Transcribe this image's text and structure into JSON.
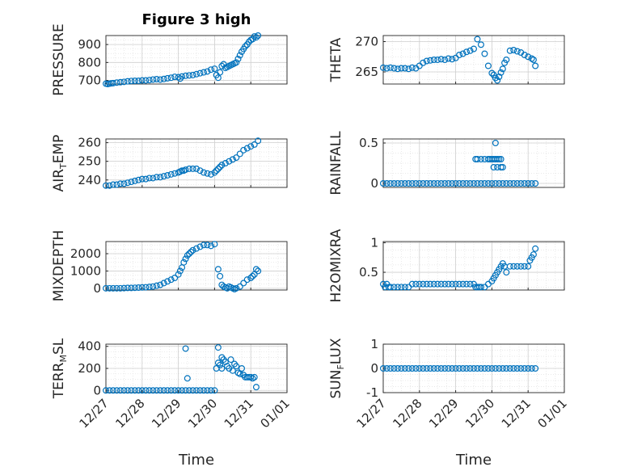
{
  "figure": {
    "title": "Figure 3 high",
    "x_categories": [
      "12/27",
      "12/28",
      "12/29",
      "12/30",
      "12/31",
      "01/01"
    ],
    "xlabel": "Time"
  },
  "colors": {
    "marker": "#0072BD",
    "axes": "#262626",
    "grid": "#cfcfcf"
  },
  "chart_data": [
    {
      "type": "scatter",
      "ylabel": "PRESSURE",
      "ylabel_sub": "",
      "ylim": [
        680,
        950
      ],
      "yticks": [
        700,
        800,
        900
      ],
      "xlim": [
        0,
        5
      ],
      "series": [
        {
          "name": "PRESSURE",
          "x": [
            0.0,
            0.05,
            0.1,
            0.15,
            0.2,
            0.3,
            0.4,
            0.5,
            0.6,
            0.7,
            0.8,
            0.9,
            1.0,
            1.1,
            1.2,
            1.3,
            1.4,
            1.5,
            1.6,
            1.7,
            1.8,
            1.9,
            2.0,
            2.05,
            2.1,
            2.2,
            2.3,
            2.4,
            2.5,
            2.6,
            2.7,
            2.8,
            2.9,
            3.0,
            3.05,
            3.1,
            3.15,
            3.2,
            3.25,
            3.3,
            3.35,
            3.4,
            3.45,
            3.5,
            3.55,
            3.6,
            3.65,
            3.7,
            3.75,
            3.8,
            3.85,
            3.9,
            3.95,
            4.0,
            4.05,
            4.1,
            4.15,
            4.2
          ],
          "y": [
            682,
            680,
            682,
            684,
            685,
            688,
            690,
            692,
            695,
            697,
            698,
            698,
            700,
            700,
            702,
            705,
            707,
            705,
            708,
            712,
            715,
            720,
            718,
            710,
            722,
            726,
            728,
            730,
            735,
            740,
            745,
            750,
            760,
            765,
            730,
            715,
            745,
            780,
            790,
            770,
            775,
            780,
            785,
            790,
            795,
            800,
            820,
            840,
            860,
            875,
            890,
            900,
            915,
            925,
            930,
            945,
            940,
            950
          ]
        }
      ]
    },
    {
      "type": "scatter",
      "ylabel": "THETA",
      "ylabel_sub": "",
      "ylim": [
        263,
        271
      ],
      "yticks": [
        265,
        270
      ],
      "xlim": [
        0,
        5
      ],
      "series": [
        {
          "name": "THETA",
          "x": [
            0.0,
            0.1,
            0.2,
            0.3,
            0.4,
            0.5,
            0.6,
            0.7,
            0.8,
            0.9,
            1.0,
            1.1,
            1.2,
            1.3,
            1.4,
            1.5,
            1.6,
            1.7,
            1.8,
            1.9,
            2.0,
            2.1,
            2.2,
            2.3,
            2.4,
            2.5,
            2.6,
            2.7,
            2.8,
            2.9,
            3.0,
            3.05,
            3.1,
            3.15,
            3.2,
            3.25,
            3.3,
            3.35,
            3.4,
            3.5,
            3.6,
            3.7,
            3.8,
            3.9,
            4.0,
            4.1,
            4.15,
            4.2
          ],
          "y": [
            265.7,
            265.6,
            265.7,
            265.6,
            265.5,
            265.6,
            265.6,
            265.5,
            265.7,
            265.6,
            266,
            266.5,
            266.8,
            266.9,
            267.0,
            267.0,
            267.1,
            267.0,
            267.2,
            267.1,
            267.3,
            267.8,
            268.0,
            268.3,
            268.5,
            268.8,
            270.4,
            269.5,
            268.0,
            266.0,
            264.8,
            264.5,
            264.0,
            263.6,
            264.2,
            264.9,
            265.5,
            266.5,
            267.0,
            268.5,
            268.6,
            268.4,
            268.2,
            267.8,
            267.5,
            267.2,
            267.0,
            266.0
          ]
        }
      ]
    },
    {
      "type": "scatter",
      "ylabel": "AIR",
      "ylabel_sub": "T",
      "ylabel_suffix": "EMP",
      "ylim": [
        236,
        262
      ],
      "yticks": [
        240,
        250,
        260
      ],
      "xlim": [
        0,
        5
      ],
      "series": [
        {
          "name": "AIR_TEMP",
          "x": [
            0.0,
            0.1,
            0.2,
            0.3,
            0.4,
            0.5,
            0.6,
            0.7,
            0.8,
            0.9,
            1.0,
            1.1,
            1.2,
            1.3,
            1.4,
            1.5,
            1.6,
            1.7,
            1.8,
            1.9,
            2.0,
            2.05,
            2.1,
            2.15,
            2.2,
            2.3,
            2.4,
            2.5,
            2.6,
            2.7,
            2.8,
            2.9,
            3.0,
            3.05,
            3.1,
            3.15,
            3.2,
            3.3,
            3.4,
            3.5,
            3.6,
            3.7,
            3.8,
            3.9,
            4.0,
            4.1,
            4.2
          ],
          "y": [
            237,
            237,
            237.5,
            237.5,
            238,
            238,
            238.5,
            239,
            239.5,
            240,
            240.5,
            240.5,
            241,
            241,
            241.5,
            241.5,
            242,
            242.5,
            243,
            243.5,
            244,
            244.5,
            245,
            245,
            245.5,
            246,
            246,
            246,
            245,
            244,
            243.5,
            243,
            244,
            245,
            246,
            247,
            248,
            249,
            250,
            251,
            252,
            254,
            256,
            257,
            258,
            259,
            261
          ]
        }
      ]
    },
    {
      "type": "scatter",
      "ylabel": "RAINFALL",
      "ylabel_sub": "",
      "ylim": [
        -0.05,
        0.55
      ],
      "yticks": [
        0,
        0.5
      ],
      "xlim": [
        0,
        5
      ],
      "series": [
        {
          "name": "RAINFALL",
          "x": [
            0.0,
            0.1,
            0.2,
            0.3,
            0.4,
            0.5,
            0.6,
            0.7,
            0.8,
            0.9,
            1.0,
            1.1,
            1.2,
            1.3,
            1.4,
            1.5,
            1.6,
            1.7,
            1.8,
            1.9,
            2.0,
            2.1,
            2.2,
            2.3,
            2.4,
            2.5,
            2.6,
            2.7,
            2.8,
            2.9,
            3.0,
            3.1,
            3.2,
            3.3,
            3.4,
            3.5,
            3.6,
            3.7,
            3.8,
            3.9,
            4.0,
            4.1,
            4.2,
            2.55,
            2.6,
            2.7,
            2.8,
            2.9,
            2.95,
            3.0,
            3.05,
            3.1,
            3.15,
            3.2,
            3.05,
            3.15,
            3.25,
            3.3,
            3.1,
            3.25
          ],
          "y": [
            0,
            0,
            0,
            0,
            0,
            0,
            0,
            0,
            0,
            0,
            0,
            0,
            0,
            0,
            0,
            0,
            0,
            0,
            0,
            0,
            0,
            0,
            0,
            0,
            0,
            0,
            0,
            0,
            0,
            0,
            0,
            0,
            0,
            0,
            0,
            0,
            0,
            0,
            0,
            0,
            0,
            0,
            0,
            0.3,
            0.3,
            0.3,
            0.3,
            0.3,
            0.3,
            0.3,
            0.3,
            0.3,
            0.3,
            0.3,
            0.2,
            0.2,
            0.2,
            0.2,
            0.5,
            0.3
          ]
        }
      ]
    },
    {
      "type": "scatter",
      "ylabel": "MIXDEPTH",
      "ylabel_sub": "",
      "ylim": [
        -100,
        2700
      ],
      "yticks": [
        0,
        1000,
        2000
      ],
      "xlim": [
        0,
        5
      ],
      "series": [
        {
          "name": "MIXDEPTH",
          "x": [
            0.0,
            0.1,
            0.2,
            0.3,
            0.4,
            0.5,
            0.6,
            0.7,
            0.8,
            0.9,
            1.0,
            1.1,
            1.2,
            1.3,
            1.4,
            1.5,
            1.6,
            1.7,
            1.8,
            1.9,
            2.0,
            2.05,
            2.1,
            2.15,
            2.2,
            2.25,
            2.3,
            2.35,
            2.4,
            2.5,
            2.6,
            2.7,
            2.8,
            2.9,
            3.0,
            3.1,
            3.15,
            3.2,
            3.25,
            3.3,
            3.35,
            3.4,
            3.45,
            3.5,
            3.55,
            3.6,
            3.7,
            3.8,
            3.9,
            4.0,
            4.05,
            4.1,
            4.15,
            4.2
          ],
          "y": [
            0,
            0,
            0,
            0,
            0,
            10,
            20,
            20,
            30,
            40,
            50,
            60,
            80,
            100,
            150,
            200,
            300,
            400,
            500,
            600,
            800,
            1000,
            1200,
            1500,
            1700,
            1900,
            2000,
            2100,
            2200,
            2300,
            2400,
            2500,
            2500,
            2450,
            2550,
            1100,
            700,
            200,
            100,
            50,
            0,
            100,
            50,
            0,
            -50,
            0,
            100,
            300,
            500,
            600,
            700,
            800,
            1100,
            1000
          ]
        }
      ]
    },
    {
      "type": "scatter",
      "ylabel": "H2OMIXRA",
      "ylabel_sub": "",
      "ylim": [
        0.2,
        1.02
      ],
      "yticks": [
        0.5,
        1
      ],
      "xlim": [
        0,
        5
      ],
      "series": [
        {
          "name": "H2OMIXRA",
          "x": [
            0.0,
            0.05,
            0.1,
            0.15,
            0.2,
            0.3,
            0.4,
            0.5,
            0.6,
            0.7,
            0.8,
            0.9,
            1.0,
            1.1,
            1.2,
            1.3,
            1.4,
            1.5,
            1.6,
            1.7,
            1.8,
            1.9,
            2.0,
            2.1,
            2.2,
            2.3,
            2.4,
            2.5,
            2.55,
            2.6,
            2.65,
            2.7,
            2.8,
            2.9,
            3.0,
            3.05,
            3.1,
            3.15,
            3.2,
            3.25,
            3.3,
            3.35,
            3.4,
            3.5,
            3.6,
            3.7,
            3.8,
            3.9,
            4.0,
            4.05,
            4.1,
            4.15,
            4.2
          ],
          "y": [
            0.3,
            0.25,
            0.3,
            0.25,
            0.25,
            0.25,
            0.25,
            0.25,
            0.25,
            0.25,
            0.3,
            0.3,
            0.3,
            0.3,
            0.3,
            0.3,
            0.3,
            0.3,
            0.3,
            0.3,
            0.3,
            0.3,
            0.3,
            0.3,
            0.3,
            0.3,
            0.3,
            0.3,
            0.25,
            0.25,
            0.25,
            0.25,
            0.25,
            0.3,
            0.35,
            0.4,
            0.45,
            0.5,
            0.55,
            0.6,
            0.65,
            0.6,
            0.5,
            0.6,
            0.6,
            0.6,
            0.6,
            0.6,
            0.6,
            0.7,
            0.75,
            0.8,
            0.9
          ]
        }
      ]
    },
    {
      "type": "scatter",
      "ylabel": "TERR",
      "ylabel_sub": "M",
      "ylabel_suffix": "SL",
      "ylim": [
        -20,
        420
      ],
      "yticks": [
        0,
        200,
        400
      ],
      "xlim": [
        0,
        5
      ],
      "series": [
        {
          "name": "TERR_MSL",
          "x": [
            0.0,
            0.1,
            0.2,
            0.3,
            0.4,
            0.5,
            0.6,
            0.7,
            0.8,
            0.9,
            1.0,
            1.1,
            1.2,
            1.3,
            1.4,
            1.5,
            1.6,
            1.7,
            1.8,
            1.9,
            2.0,
            2.1,
            2.2,
            2.3,
            2.4,
            2.5,
            2.6,
            2.7,
            2.8,
            2.9,
            3.0,
            3.05,
            3.1,
            3.15,
            3.2,
            3.25,
            3.3,
            3.35,
            3.4,
            3.45,
            3.5,
            3.55,
            3.6,
            3.65,
            3.7,
            3.75,
            3.8,
            3.85,
            3.9,
            3.95,
            4.0,
            4.05,
            4.1,
            4.15,
            2.2,
            2.25,
            3.1,
            3.2
          ],
          "y": [
            0,
            0,
            0,
            0,
            0,
            0,
            0,
            0,
            0,
            0,
            0,
            0,
            0,
            0,
            0,
            0,
            0,
            0,
            0,
            0,
            0,
            0,
            0,
            0,
            0,
            0,
            0,
            0,
            0,
            0,
            0,
            200,
            250,
            230,
            300,
            280,
            260,
            220,
            200,
            280,
            180,
            240,
            220,
            160,
            150,
            200,
            140,
            120,
            120,
            120,
            120,
            110,
            120,
            30,
            380,
            110,
            390,
            200
          ]
        }
      ]
    },
    {
      "type": "scatter",
      "ylabel": "SUN",
      "ylabel_sub": "F",
      "ylabel_suffix": "LUX",
      "ylim": [
        -1,
        1
      ],
      "yticks": [
        -1,
        0,
        1
      ],
      "xlim": [
        0,
        5
      ],
      "series": [
        {
          "name": "SUN_FLUX",
          "x": [
            0.0,
            0.1,
            0.2,
            0.3,
            0.4,
            0.5,
            0.6,
            0.7,
            0.8,
            0.9,
            1.0,
            1.1,
            1.2,
            1.3,
            1.4,
            1.5,
            1.6,
            1.7,
            1.8,
            1.9,
            2.0,
            2.1,
            2.2,
            2.3,
            2.4,
            2.5,
            2.6,
            2.7,
            2.8,
            2.9,
            3.0,
            3.1,
            3.2,
            3.3,
            3.4,
            3.5,
            3.6,
            3.7,
            3.8,
            3.9,
            4.0,
            4.1,
            4.2
          ],
          "y": [
            0,
            0,
            0,
            0,
            0,
            0,
            0,
            0,
            0,
            0,
            0,
            0,
            0,
            0,
            0,
            0,
            0,
            0,
            0,
            0,
            0,
            0,
            0,
            0,
            0,
            0,
            0,
            0,
            0,
            0,
            0,
            0,
            0,
            0,
            0,
            0,
            0,
            0,
            0,
            0,
            0,
            0,
            0
          ]
        }
      ]
    }
  ]
}
